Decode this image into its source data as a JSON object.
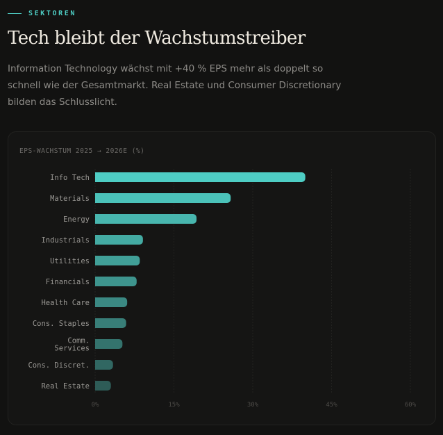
{
  "eyebrow": "SEKTOREN",
  "title": "Tech bleibt der Wachstumstreiber",
  "lead": "Information Technology wächst mit +40 % EPS mehr als doppelt so schnell wie der Gesamtmarkt. Real Estate und Consumer Discretionary bilden das Schlusslicht.",
  "colors": {
    "accent": "#4ecdc4",
    "bar_start": "#4ecdc4",
    "bar_end": "#2e5c57"
  },
  "chart_data": {
    "type": "bar",
    "orientation": "horizontal",
    "title": "EPS-WACHSTUM 2025 → 2026E (%)",
    "categories": [
      "Info Tech",
      "Materials",
      "Energy",
      "Industrials",
      "Utilities",
      "Financials",
      "Health Care",
      "Cons. Staples",
      "Comm. Services",
      "Cons. Discret.",
      "Real Estate"
    ],
    "values": [
      40,
      25.8,
      19.3,
      9.1,
      8.5,
      7.9,
      6.1,
      5.9,
      5.2,
      3.4,
      3.0
    ],
    "xlim": [
      0,
      60
    ],
    "xticks": [
      "0%",
      "15%",
      "30%",
      "45%",
      "60%"
    ],
    "grid": true
  }
}
